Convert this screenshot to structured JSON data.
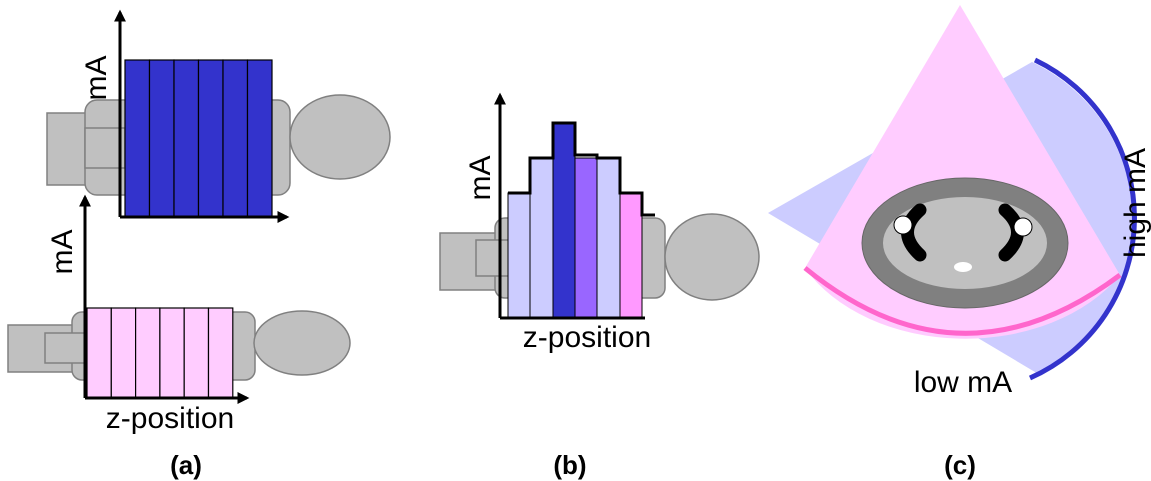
{
  "panel_a": {
    "top_axis_label": "mA",
    "bottom_axis_label": "mA",
    "x_axis_label": "z-position"
  },
  "panel_b": {
    "y_axis_label": "mA",
    "x_axis_label": "z-position"
  },
  "panel_c": {
    "high_label": "high mA",
    "low_label": "low mA"
  },
  "captions": {
    "a": "(a)",
    "b": "(b)",
    "c": "(c)"
  }
}
